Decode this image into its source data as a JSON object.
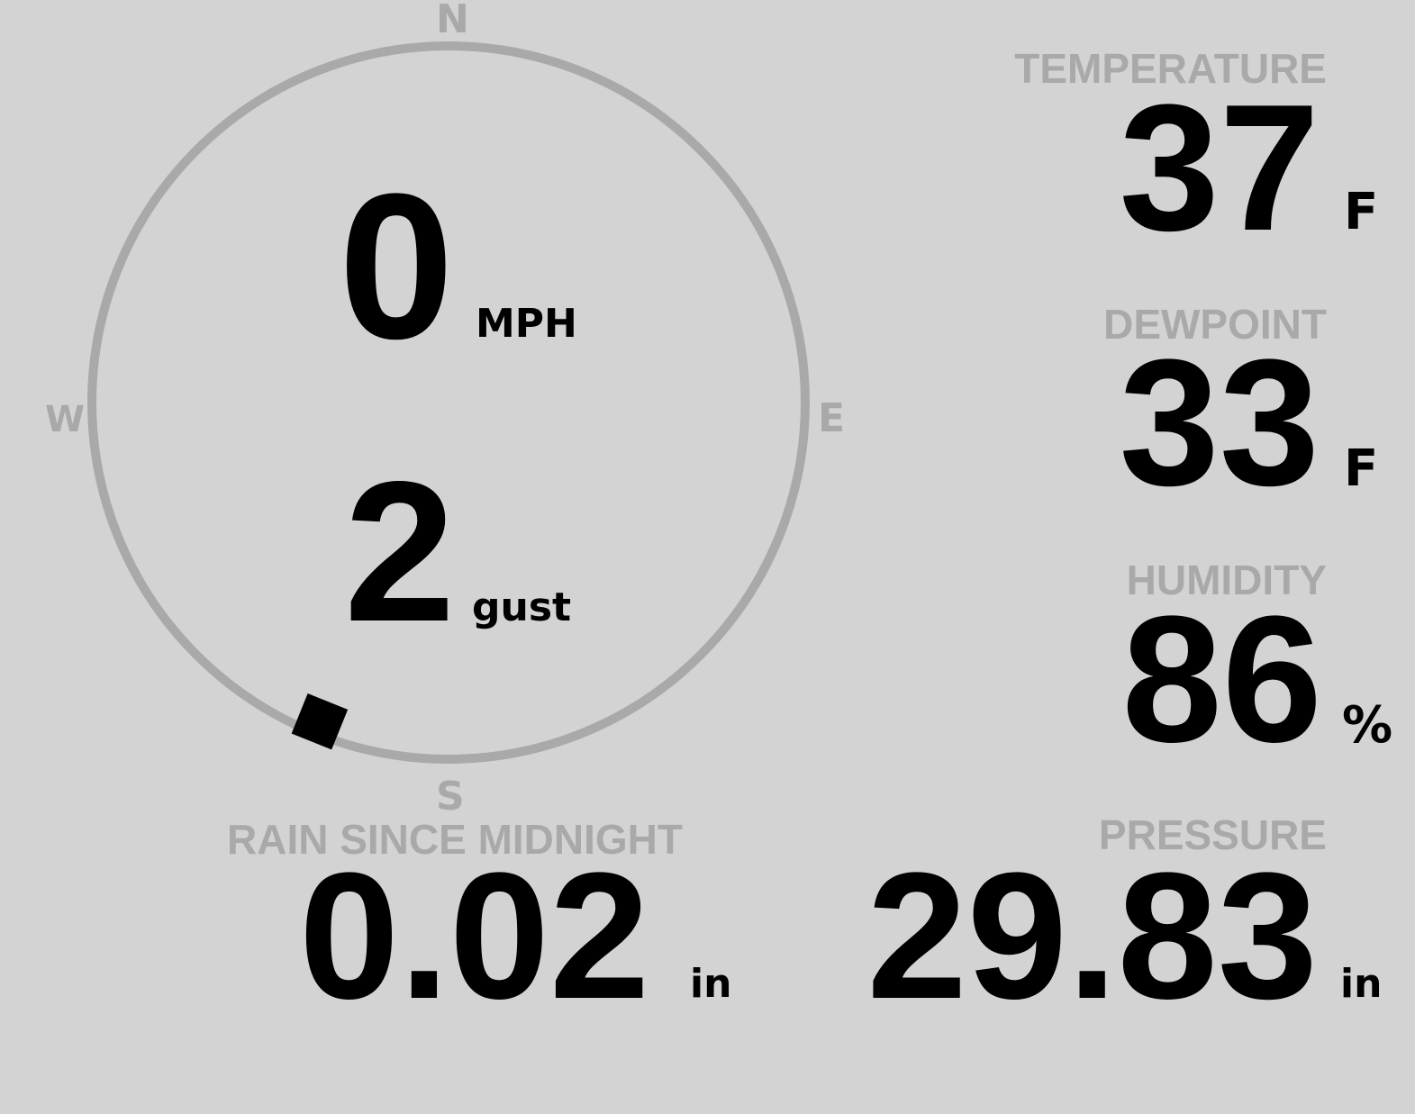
{
  "colors": {
    "background": "#d3d3d3",
    "label": "#a9a9a9",
    "value": "#000000",
    "ring": "#a9a9a9"
  },
  "wind": {
    "compass": {
      "n": "N",
      "e": "E",
      "s": "S",
      "w": "W"
    },
    "direction_deg": 202,
    "speed": "0",
    "speed_unit": "MPH",
    "gust": "2",
    "gust_unit": "gust"
  },
  "temperature": {
    "label": "TEMPERATURE",
    "value": "37",
    "unit": "F"
  },
  "dewpoint": {
    "label": "DEWPOINT",
    "value": "33",
    "unit": "F"
  },
  "humidity": {
    "label": "HUMIDITY",
    "value": "86",
    "unit": "%"
  },
  "rain": {
    "label": "RAIN SINCE MIDNIGHT",
    "value": "0.02",
    "unit": "in"
  },
  "pressure": {
    "label": "PRESSURE",
    "value": "29.83",
    "unit": "in"
  }
}
